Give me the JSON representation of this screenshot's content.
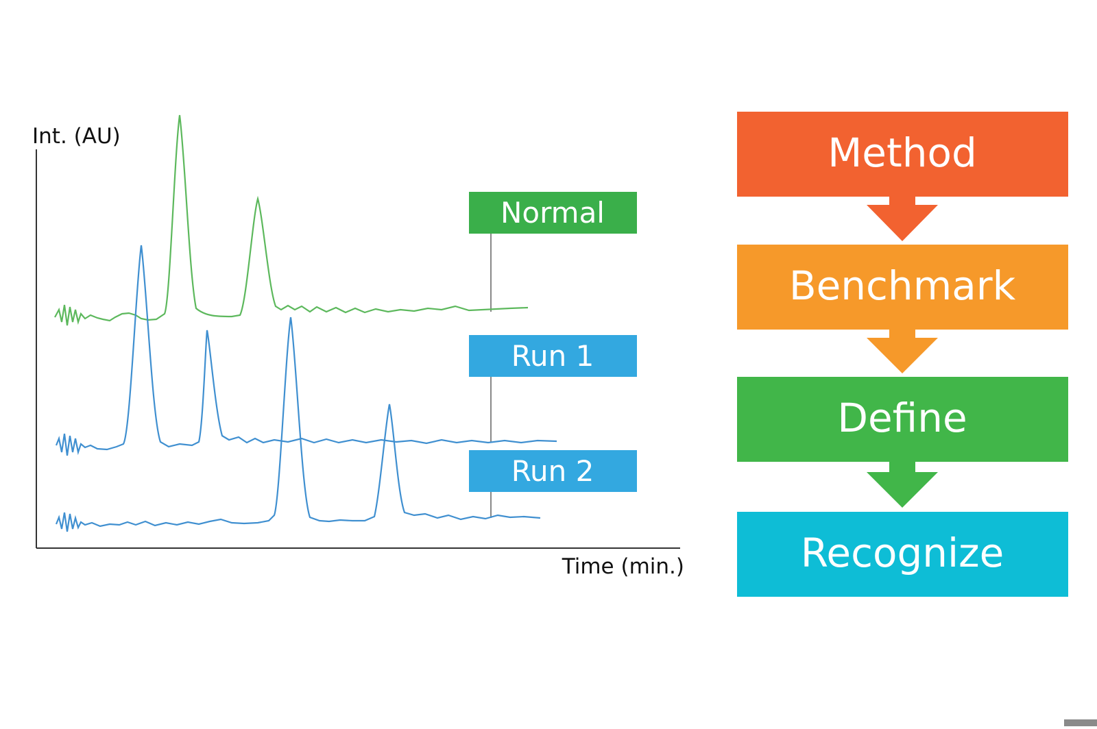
{
  "chart": {
    "y_axis_label": "Int. (AU)",
    "x_axis_label": "Time (min.)",
    "traces": [
      {
        "label": "Normal",
        "color": "#5cb85c",
        "label_bg": "#3aaf4a"
      },
      {
        "label": "Run 1",
        "color": "#3f8fd0",
        "label_bg": "#33a8e0"
      },
      {
        "label": "Run 2",
        "color": "#3f8fd0",
        "label_bg": "#33a8e0"
      }
    ]
  },
  "flow": {
    "steps": [
      {
        "label": "Method",
        "color": "#f26230"
      },
      {
        "label": "Benchmark",
        "color": "#f6992a"
      },
      {
        "label": "Define",
        "color": "#41b649"
      },
      {
        "label": "Recognize",
        "color": "#0ebdd6"
      }
    ]
  }
}
